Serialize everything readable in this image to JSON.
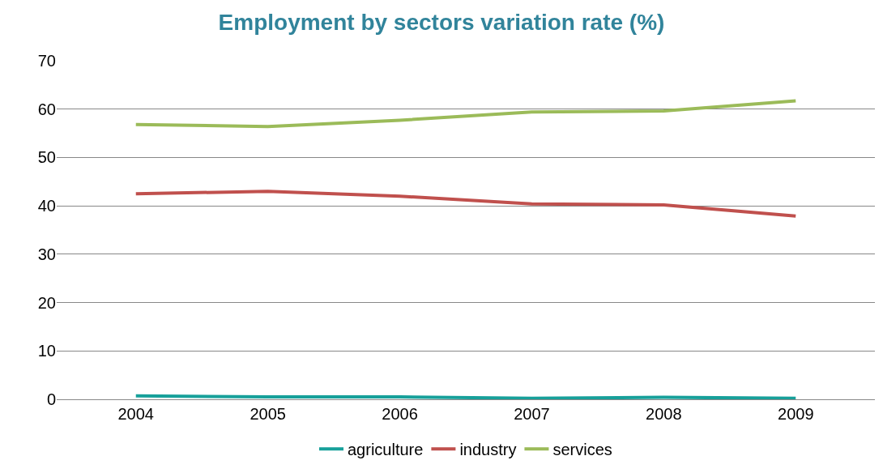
{
  "chart_data": {
    "type": "line",
    "title": "Employment by sectors variation rate (%)",
    "categories": [
      "2004",
      "2005",
      "2006",
      "2007",
      "2008",
      "2009"
    ],
    "series": [
      {
        "name": "agriculture",
        "color": "#17a09a",
        "values": [
          0.7,
          0.5,
          0.5,
          0.2,
          0.4,
          0.2
        ]
      },
      {
        "name": "industry",
        "color": "#c0504d",
        "values": [
          42.5,
          43.0,
          42.0,
          40.4,
          40.2,
          37.9
        ]
      },
      {
        "name": "services",
        "color": "#9bbb59",
        "values": [
          56.8,
          56.4,
          57.7,
          59.4,
          59.6,
          61.7
        ]
      }
    ],
    "ylim": [
      0,
      70
    ],
    "yticks": [
      0,
      10,
      20,
      30,
      40,
      50,
      60,
      70
    ],
    "grid": "y",
    "legend": "bottom",
    "marker": "none",
    "line_style": "solid"
  }
}
